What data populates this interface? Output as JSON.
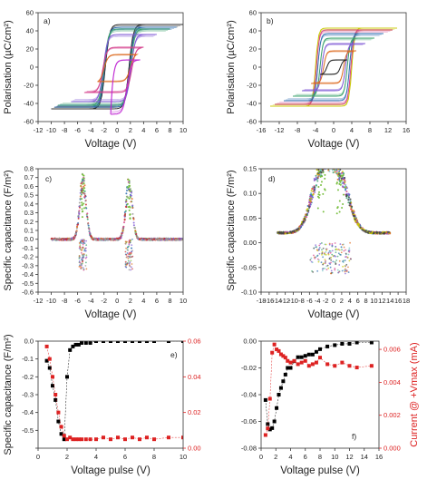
{
  "figure": {
    "panels": [
      {
        "id": "a",
        "tag": "a)"
      },
      {
        "id": "b",
        "tag": "b)"
      },
      {
        "id": "c",
        "tag": "c)"
      },
      {
        "id": "d",
        "tag": "d)"
      },
      {
        "id": "e",
        "tag": "e)"
      },
      {
        "id": "f",
        "tag": "f)"
      }
    ]
  },
  "chart_data": [
    {
      "panel": "a",
      "type": "line",
      "xlabel": "Voltage (V)",
      "ylabel": "Polarisation (µC/cm²)",
      "xlim": [
        -12,
        10
      ],
      "ylim": [
        -60,
        60
      ],
      "xticks": [
        -12,
        -10,
        -8,
        -6,
        -4,
        -2,
        0,
        2,
        4,
        6,
        8,
        10
      ],
      "yticks": [
        -60,
        -40,
        -20,
        0,
        20,
        40,
        60
      ],
      "series": [
        {
          "color": "#222222",
          "loop": {
            "vmax": 10,
            "pmax": 47,
            "pr": 38,
            "vc": 1.8,
            "vmin": -10,
            "pmin": -46
          }
        },
        {
          "color": "#2b6cb0",
          "loop": {
            "vmax": 9,
            "pmax": 44,
            "pr": 35,
            "vc": 1.9,
            "vmin": -9.5,
            "pmin": -44
          }
        },
        {
          "color": "#38a169",
          "loop": {
            "vmax": 8,
            "pmax": 42,
            "pr": 33,
            "vc": 2.0,
            "vmin": -9,
            "pmin": -42
          }
        },
        {
          "color": "#805ad5",
          "loop": {
            "vmax": 6,
            "pmax": 36,
            "pr": 28,
            "vc": 2.1,
            "vmin": -7,
            "pmin": -38
          }
        },
        {
          "color": "#d53f8c",
          "loop": {
            "vmax": 4,
            "pmax": 22,
            "pr": 12,
            "vc": 2.2,
            "vmin": -5,
            "pmin": -28
          }
        },
        {
          "color": "#dd6b20",
          "loop": {
            "vmax": 3,
            "pmax": 14,
            "pr": 6,
            "vc": 2.0,
            "vmin": -3,
            "pmin": -16
          }
        },
        {
          "color": "#c026d3",
          "loop": {
            "vmax": 3.5,
            "pmax": 8,
            "pr": 2,
            "vc": 1.5,
            "vmin": -1,
            "pmin": -52
          }
        }
      ]
    },
    {
      "panel": "b",
      "type": "line",
      "xlabel": "Voltage (V)",
      "ylabel": "Polarisation (µC/cm²)",
      "xlim": [
        -16,
        16
      ],
      "ylim": [
        -60,
        60
      ],
      "xticks": [
        -16,
        -12,
        -8,
        -4,
        0,
        4,
        8,
        12,
        16
      ],
      "yticks": [
        -60,
        -40,
        -20,
        0,
        20,
        40,
        60
      ],
      "series": [
        {
          "color": "#c8c800",
          "loop": {
            "vmax": 14,
            "pmax": 43,
            "pr": 22,
            "vc": 4.0,
            "vmin": -14,
            "pmin": -43
          }
        },
        {
          "color": "#d53f8c",
          "loop": {
            "vmax": 13,
            "pmax": 41,
            "pr": 20,
            "vc": 3.8,
            "vmin": -13,
            "pmin": -41
          }
        },
        {
          "color": "#2b6cb0",
          "loop": {
            "vmax": 11,
            "pmax": 37,
            "pr": 17,
            "vc": 3.5,
            "vmin": -11,
            "pmin": -37
          }
        },
        {
          "color": "#38a169",
          "loop": {
            "vmax": 9,
            "pmax": 32,
            "pr": 14,
            "vc": 3.0,
            "vmin": -9,
            "pmin": -32
          }
        },
        {
          "color": "#805ad5",
          "loop": {
            "vmax": 7,
            "pmax": 26,
            "pr": 10,
            "vc": 2.6,
            "vmin": -7,
            "pmin": -26
          }
        },
        {
          "color": "#dd6b20",
          "loop": {
            "vmax": 5,
            "pmax": 18,
            "pr": 6,
            "vc": 2.2,
            "vmin": -5,
            "pmin": -18
          }
        },
        {
          "color": "#222222",
          "loop": {
            "vmax": 3,
            "pmax": 8,
            "pr": 3,
            "vc": 1.5,
            "vmin": -3,
            "pmin": -8
          }
        }
      ]
    },
    {
      "panel": "c",
      "type": "scatter",
      "xlabel": "Voltage (V)",
      "ylabel": "Specific capacitance (F/m²)",
      "xlim": [
        -12,
        10
      ],
      "ylim": [
        -0.6,
        0.8
      ],
      "xticks": [
        -12,
        -10,
        -8,
        -6,
        -4,
        -2,
        0,
        2,
        4,
        6,
        8,
        10
      ],
      "yticks": [
        -0.6,
        -0.5,
        -0.4,
        -0.3,
        -0.2,
        -0.1,
        0.0,
        0.1,
        0.2,
        0.3,
        0.4,
        0.5,
        0.6,
        0.7,
        0.8
      ],
      "ytick_labels": [
        "-0.6",
        "-0.5",
        "-0.4",
        "-0.3",
        "-0.2",
        "-0.1",
        "0.0",
        "0.1",
        "0.2",
        "0.3",
        "0.4",
        "0.5",
        "0.6",
        "0.7",
        "0.8"
      ],
      "peaks": [
        {
          "center": -5.2,
          "height": 0.75,
          "width": 0.7
        },
        {
          "center": 1.8,
          "height": 0.72,
          "width": 0.7
        }
      ],
      "baseline": 0.0,
      "x_range": [
        -10,
        10
      ],
      "colors": [
        "#38a169",
        "#7bc043",
        "#2b6cb0",
        "#d53f8c",
        "#dd6b20",
        "#805ad5",
        "#c53030",
        "#999999"
      ]
    },
    {
      "panel": "d",
      "type": "scatter",
      "xlabel": "Voltage (V)",
      "ylabel": "Specific capacitance (F/m²)",
      "xlim": [
        -18,
        18
      ],
      "ylim": [
        -0.1,
        0.15
      ],
      "xticks": [
        -18,
        -16,
        -14,
        -12,
        -10,
        -8,
        -6,
        -4,
        -2,
        0,
        2,
        4,
        6,
        8,
        10,
        12,
        14,
        16,
        18
      ],
      "yticks": [
        -0.1,
        -0.05,
        0.0,
        0.05,
        0.1,
        0.15
      ],
      "ytick_labels": [
        "-0.10",
        "-0.05",
        "0.00",
        "0.05",
        "0.10",
        "0.15"
      ],
      "peaks": [
        {
          "center": -3.0,
          "height": 0.14,
          "width": 3.5
        },
        {
          "center": 1.5,
          "height": 0.12,
          "width": 3.5
        }
      ],
      "baseline": 0.02,
      "x_range": [
        -14,
        14
      ],
      "colors": [
        "#6bc0c0",
        "#38a169",
        "#2b6cb0",
        "#d53f8c",
        "#dd6b20",
        "#805ad5",
        "#c8c800",
        "#444444"
      ]
    },
    {
      "panel": "e",
      "type": "scatter",
      "xlabel": "Voltage pulse (V)",
      "ylabel": "Specific capacitance (F/m²)",
      "y2label": "",
      "xlim": [
        0,
        10
      ],
      "ylim": [
        -0.6,
        0.0
      ],
      "y2lim": [
        0.0,
        0.06
      ],
      "xticks": [
        0,
        2,
        4,
        6,
        8,
        10
      ],
      "yticks": [
        -0.6,
        -0.5,
        -0.4,
        -0.3,
        -0.2,
        -0.1,
        0.0
      ],
      "ytick_labels": [
        "",
        "-0.5",
        "-0.4",
        "-0.3",
        "-0.2",
        "-0.1",
        "0.0"
      ],
      "y2ticks": [
        0.0,
        0.02,
        0.04,
        0.06
      ],
      "y2tick_labels": [
        "0.00",
        "0.02",
        "0.04",
        "0.06"
      ],
      "series": [
        {
          "axis": "left",
          "color": "#000000",
          "x": [
            0.6,
            0.8,
            1.0,
            1.2,
            1.4,
            1.6,
            1.8,
            2.0,
            2.2,
            2.4,
            2.6,
            2.8,
            3.0,
            3.3,
            3.6,
            4.0,
            4.5,
            5.0,
            5.5,
            6.0,
            6.5,
            7.0,
            7.5,
            8.0,
            9.0,
            10.0
          ],
          "y": [
            -0.11,
            -0.15,
            -0.25,
            -0.33,
            -0.45,
            -0.52,
            -0.55,
            -0.2,
            -0.05,
            -0.03,
            -0.02,
            -0.02,
            -0.01,
            -0.01,
            -0.01,
            0.0,
            0.0,
            0.0,
            0.0,
            0.0,
            0.0,
            0.0,
            0.0,
            0.0,
            0.0,
            0.0
          ]
        },
        {
          "axis": "right",
          "color": "#dd2222",
          "x": [
            0.6,
            0.8,
            1.0,
            1.2,
            1.4,
            1.6,
            1.8,
            2.0,
            2.2,
            2.4,
            2.6,
            2.8,
            3.0,
            3.3,
            3.6,
            4.0,
            4.5,
            5.0,
            5.5,
            6.0,
            6.5,
            7.0,
            7.5,
            8.0,
            9.0,
            10.0
          ],
          "y": [
            0.057,
            0.05,
            0.04,
            0.03,
            0.02,
            0.012,
            0.007,
            0.005,
            0.006,
            0.005,
            0.005,
            0.005,
            0.005,
            0.005,
            0.005,
            0.005,
            0.006,
            0.005,
            0.006,
            0.005,
            0.006,
            0.005,
            0.006,
            0.005,
            0.006,
            0.006
          ]
        }
      ]
    },
    {
      "panel": "f",
      "type": "scatter",
      "xlabel": "Voltage pulse (V)",
      "ylabel": "",
      "y2label": "Current @ +Vmax (mA)",
      "xlim": [
        0,
        16
      ],
      "ylim": [
        -0.08,
        0.0
      ],
      "y2lim": [
        0.0,
        0.0065
      ],
      "xticks": [
        0,
        2,
        4,
        6,
        8,
        10,
        12,
        14,
        16
      ],
      "yticks": [
        -0.08,
        -0.06,
        -0.04,
        -0.02,
        0.0
      ],
      "ytick_labels": [
        "-0.08",
        "-0.06",
        "-0.04",
        "-0.02",
        "0.00"
      ],
      "y2ticks": [
        0.0,
        0.002,
        0.004,
        0.006
      ],
      "y2tick_labels": [
        "0.000",
        "0.002",
        "0.004",
        "0.006"
      ],
      "series": [
        {
          "axis": "left",
          "color": "#000000",
          "x": [
            0.6,
            0.9,
            1.2,
            1.5,
            1.8,
            2.1,
            2.4,
            2.7,
            3.0,
            3.3,
            3.6,
            4.0,
            4.5,
            5.0,
            5.5,
            6.0,
            6.5,
            7.0,
            7.5,
            8.0,
            9.0,
            10.0,
            11.0,
            12.0,
            13.0,
            15.0
          ],
          "y": [
            -0.044,
            -0.062,
            -0.066,
            -0.065,
            -0.06,
            -0.05,
            -0.04,
            -0.035,
            -0.03,
            -0.025,
            -0.02,
            -0.02,
            -0.015,
            -0.012,
            -0.012,
            -0.011,
            -0.01,
            -0.01,
            -0.008,
            -0.006,
            -0.004,
            -0.003,
            -0.002,
            -0.002,
            -0.001,
            -0.001
          ]
        },
        {
          "axis": "right",
          "color": "#dd2222",
          "x": [
            0.6,
            0.9,
            1.2,
            1.5,
            1.8,
            2.1,
            2.4,
            2.7,
            3.0,
            3.3,
            3.6,
            4.0,
            4.5,
            5.0,
            5.5,
            6.0,
            6.5,
            7.0,
            7.5,
            8.0,
            9.0,
            10.0,
            11.0,
            12.0,
            13.0,
            15.0
          ],
          "y": [
            0.0008,
            0.0012,
            0.003,
            0.0058,
            0.0063,
            0.006,
            0.0059,
            0.0057,
            0.0056,
            0.0055,
            0.0053,
            0.0052,
            0.0053,
            0.0051,
            0.0052,
            0.0053,
            0.005,
            0.0051,
            0.0052,
            0.0055,
            0.0051,
            0.005,
            0.0052,
            0.005,
            0.0049,
            0.005
          ]
        }
      ]
    }
  ]
}
